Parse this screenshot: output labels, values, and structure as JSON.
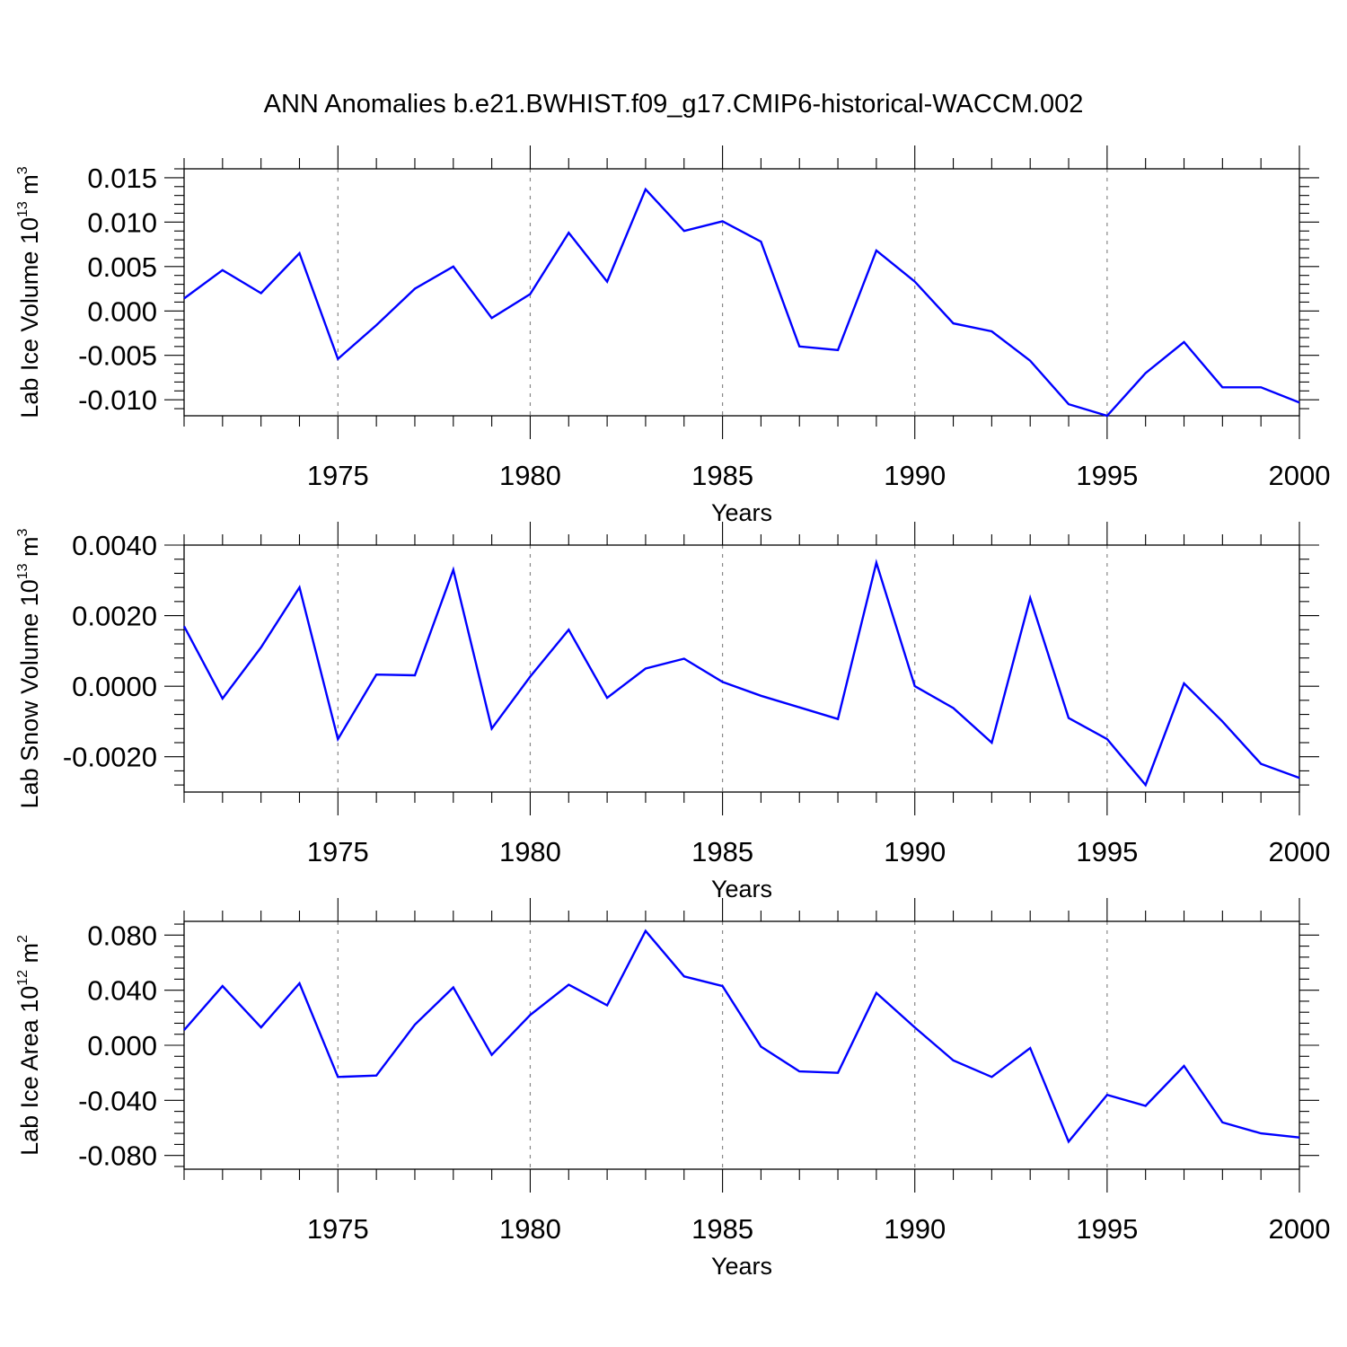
{
  "title": "ANN Anomalies b.e21.BWHIST.f09_g17.CMIP6-historical-WACCM.002",
  "colors": {
    "line": "#0000ff",
    "axis": "#000000",
    "grid": "#888888"
  },
  "chart_data": [
    {
      "type": "line",
      "ylabel": {
        "main": "Lab Ice Volume 10",
        "exp": "13",
        "unit": "m",
        "unit_exp": "3"
      },
      "xlabel": "Years",
      "xlim": [
        1971,
        2000
      ],
      "ylim": [
        -0.0118,
        0.016
      ],
      "x_ticks": [
        1975,
        1980,
        1985,
        1990,
        1995,
        2000
      ],
      "y_ticks": [
        -0.01,
        -0.005,
        0.0,
        0.005,
        0.01,
        0.015
      ],
      "y_tick_labels": [
        "-0.010",
        "-0.005",
        "0.000",
        "0.005",
        "0.010",
        "0.015"
      ],
      "grid": "dashed vertical at major x ticks",
      "x": [
        1971,
        1972,
        1973,
        1974,
        1975,
        1976,
        1977,
        1978,
        1979,
        1980,
        1981,
        1982,
        1983,
        1984,
        1985,
        1986,
        1987,
        1988,
        1989,
        1990,
        1991,
        1992,
        1993,
        1994,
        1995,
        1996,
        1997,
        1998,
        1999,
        2000
      ],
      "values": [
        0.0014,
        0.0046,
        0.002,
        0.0065,
        -0.0054,
        -0.0016,
        0.0025,
        0.005,
        -0.0008,
        0.0019,
        0.0088,
        0.0033,
        0.0137,
        0.009,
        0.0101,
        0.0078,
        -0.004,
        -0.0044,
        0.0068,
        0.0033,
        -0.0014,
        -0.0023,
        -0.0056,
        -0.0105,
        -0.0118,
        -0.007,
        -0.0035,
        -0.0086,
        -0.0086,
        -0.0103
      ]
    },
    {
      "type": "line",
      "ylabel": {
        "main": "Lab Snow Volume 10",
        "exp": "13",
        "unit": "m",
        "unit_exp": "3"
      },
      "xlabel": "Years",
      "xlim": [
        1971,
        2000
      ],
      "ylim": [
        -0.003,
        0.004
      ],
      "x_ticks": [
        1975,
        1980,
        1985,
        1990,
        1995,
        2000
      ],
      "y_ticks": [
        -0.002,
        0.0,
        0.002,
        0.004
      ],
      "y_tick_labels": [
        "-0.0020",
        "0.0000",
        "0.0020",
        "0.0040"
      ],
      "grid": "dashed vertical at major x ticks",
      "x": [
        1971,
        1972,
        1973,
        1974,
        1975,
        1976,
        1977,
        1978,
        1979,
        1980,
        1981,
        1982,
        1983,
        1984,
        1985,
        1986,
        1987,
        1988,
        1989,
        1990,
        1991,
        1992,
        1993,
        1994,
        1995,
        1996,
        1997,
        1998,
        1999,
        2000
      ],
      "values": [
        0.0017,
        -0.00035,
        0.0011,
        0.0028,
        -0.0015,
        0.00033,
        0.00031,
        0.0033,
        -0.0012,
        0.00027,
        0.0016,
        -0.00033,
        0.0005,
        0.00078,
        0.00012,
        -0.00027,
        -0.0006,
        -0.00093,
        0.0035,
        0.0,
        -0.00062,
        -0.0016,
        0.0025,
        -0.0009,
        -0.0015,
        -0.0028,
        8e-05,
        -0.001,
        -0.0022,
        -0.0026
      ]
    },
    {
      "type": "line",
      "ylabel": {
        "main": "Lab Ice Area 10",
        "exp": "12",
        "unit": "m",
        "unit_exp": "2"
      },
      "xlabel": "Years",
      "xlim": [
        1971,
        2000
      ],
      "ylim": [
        -0.09,
        0.09
      ],
      "x_ticks": [
        1975,
        1980,
        1985,
        1990,
        1995,
        2000
      ],
      "y_ticks": [
        -0.08,
        -0.04,
        0.0,
        0.04,
        0.08
      ],
      "y_tick_labels": [
        "-0.080",
        "-0.040",
        "0.000",
        "0.040",
        "0.080"
      ],
      "grid": "dashed vertical at major x ticks",
      "x": [
        1971,
        1972,
        1973,
        1974,
        1975,
        1976,
        1977,
        1978,
        1979,
        1980,
        1981,
        1982,
        1983,
        1984,
        1985,
        1986,
        1987,
        1988,
        1989,
        1990,
        1991,
        1992,
        1993,
        1994,
        1995,
        1996,
        1997,
        1998,
        1999,
        2000
      ],
      "values": [
        0.011,
        0.043,
        0.013,
        0.045,
        -0.023,
        -0.022,
        0.015,
        0.042,
        -0.007,
        0.022,
        0.044,
        0.029,
        0.083,
        0.05,
        0.043,
        -0.001,
        -0.019,
        -0.02,
        0.038,
        0.013,
        -0.011,
        -0.023,
        -0.002,
        -0.07,
        -0.036,
        -0.044,
        -0.015,
        -0.056,
        -0.064,
        -0.067
      ]
    }
  ]
}
